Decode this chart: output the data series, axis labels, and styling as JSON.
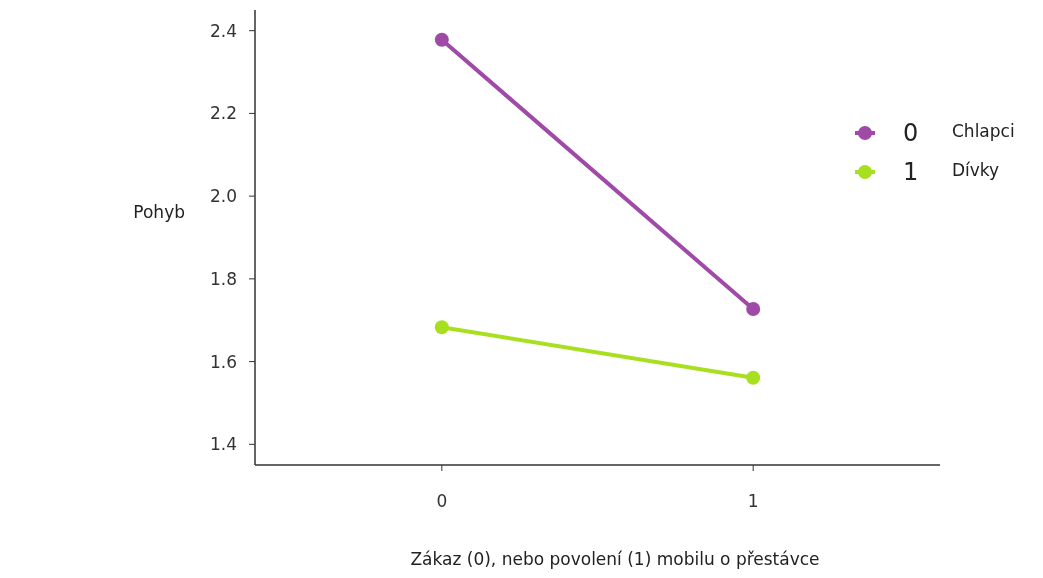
{
  "chart_data": {
    "type": "line",
    "xlabel": "Zákaz (0), nebo povolení (1) mobilu o přestávce",
    "ylabel": "Pohyb",
    "x": [
      0,
      1
    ],
    "series": [
      {
        "name": "0",
        "color": "#a04aa8",
        "values": [
          2.378,
          1.727
        ]
      },
      {
        "name": "1",
        "color": "#a8e020",
        "values": [
          1.683,
          1.561
        ]
      }
    ],
    "annotations": [
      "Chlapci",
      "Dívky"
    ],
    "xlim": [
      -0.6,
      1.6
    ],
    "xticks": [
      0,
      1
    ],
    "ylim": [
      1.35,
      2.45
    ],
    "yticks": [
      1.4,
      1.6,
      1.8,
      {
        "value": 2,
        "label": "2.0"
      },
      2.2,
      2.4
    ],
    "grid": false,
    "legend": "right",
    "marker": "circle",
    "line_style": "solid"
  }
}
